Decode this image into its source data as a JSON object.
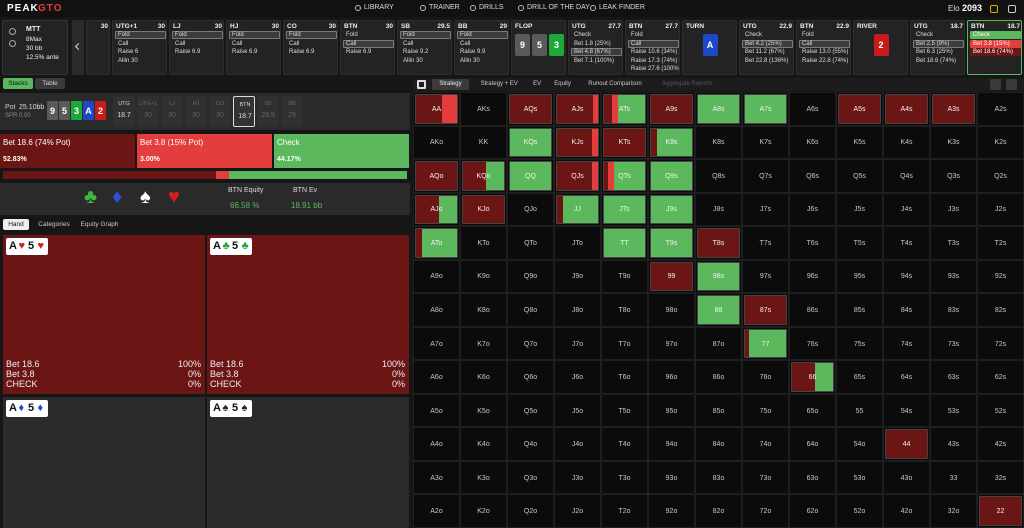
{
  "nav": {
    "logo": [
      "PEAK",
      "GTO"
    ],
    "items": [
      "LIBRARY",
      "TRAINER",
      "DRILLS",
      "DRILL OF THE DAY",
      "LEAK FINDER"
    ],
    "elo_label": "Elo",
    "elo": "2093"
  },
  "game": {
    "format": "MTT",
    "players": "8Max",
    "stack": "30 bb",
    "ante": "12.5% ante"
  },
  "action_columns": [
    {
      "stack": "30",
      "options": []
    },
    {
      "position": "UTG+1",
      "stack": "30",
      "options": [
        "Fold",
        "Call",
        "Raise 6",
        "Allin 30"
      ],
      "selected": 0
    },
    {
      "position": "LJ",
      "stack": "30",
      "options": [
        "Fold",
        "Call",
        "Raise 6.9"
      ],
      "selected": 0
    },
    {
      "position": "HJ",
      "stack": "30",
      "options": [
        "Fold",
        "Call",
        "Raise 6.9"
      ],
      "selected": 0
    },
    {
      "position": "CO",
      "stack": "30",
      "options": [
        "Fold",
        "Call",
        "Raise 6.9"
      ],
      "selected": 0
    },
    {
      "position": "BTN",
      "stack": "30",
      "options": [
        "Fold",
        "Call",
        "Raise 6.9"
      ],
      "selected": 1
    },
    {
      "position": "SB",
      "stack": "29.5",
      "options": [
        "Fold",
        "Call",
        "Raise 9.2",
        "Allin 30"
      ],
      "selected": 0
    },
    {
      "position": "BB",
      "stack": "29",
      "options": [
        "Fold",
        "Call",
        "Raise 9.9",
        "Allin 30"
      ],
      "selected": 0
    },
    {
      "street": "FLOP",
      "cards": [
        {
          "rank": "9",
          "color": "#5a5a5a"
        },
        {
          "rank": "5",
          "color": "#5a5a5a"
        },
        {
          "rank": "3",
          "color": "#1fa83a"
        }
      ]
    },
    {
      "position": "UTG",
      "stack": "27.7",
      "options": [
        "Check",
        "Bet 1.8 (25%)",
        "Bet 4.8 (67%)",
        "Bet 7.1 (100%)"
      ],
      "selected": 2
    },
    {
      "position": "BTN",
      "stack": "27.7",
      "options": [
        "Fold",
        "Call",
        "Raise 10.6 (34%)",
        "Raise 17.3 (74%)",
        "Raise 27.6 (100%)"
      ],
      "selected": 1
    },
    {
      "street": "TURN",
      "cards": [
        {
          "rank": "A",
          "color": "#1d49c9"
        }
      ]
    },
    {
      "position": "UTG",
      "stack": "22.9",
      "options": [
        "Check",
        "Bet 4.2 (25%)",
        "Bet 11.2 (67%)",
        "Bet 22.8 (136%)"
      ],
      "selected": 1
    },
    {
      "position": "BTN",
      "stack": "22.9",
      "options": [
        "Fold",
        "Call",
        "Raise 13.0 (55%)",
        "Raise 22.8 (74%)"
      ],
      "selected": 1
    },
    {
      "street": "RIVER",
      "cards": [
        {
          "rank": "2",
          "color": "#c71c1c"
        }
      ]
    },
    {
      "position": "UTG",
      "stack": "18.7",
      "options": [
        "Check",
        "Bet 2.5 (9%)",
        "Bet 6.3 (25%)",
        "Bet 18.6 (74%)"
      ],
      "selected": 1
    },
    {
      "position": "BTN",
      "stack": "18.7",
      "options": [
        "Check",
        "Bet 3.8 (15%)",
        "Bet 18.6 (74%)"
      ],
      "colors": [
        "#5cb85c",
        "#e33d3d",
        "#6b1515"
      ],
      "active": true
    }
  ],
  "left_tabs": [
    "Stacks",
    "Table"
  ],
  "pot": {
    "label": "Pot",
    "value": "25.10bb",
    "spr": "SPR 0.00"
  },
  "board": [
    {
      "rank": "9",
      "color": "#5a5a5a"
    },
    {
      "rank": "5",
      "color": "#5a5a5a"
    },
    {
      "rank": "3",
      "color": "#1fa83a"
    },
    {
      "rank": "A",
      "color": "#1d49c9"
    },
    {
      "rank": "2",
      "color": "#c71c1c"
    }
  ],
  "positions": [
    {
      "pos": "UTG",
      "stack": "18.7"
    },
    {
      "pos": "UTG+1",
      "stack": "30"
    },
    {
      "pos": "LJ",
      "stack": "30"
    },
    {
      "pos": "HJ",
      "stack": "30"
    },
    {
      "pos": "CO",
      "stack": "30"
    },
    {
      "pos": "BTN",
      "stack": "18.7",
      "active": true
    },
    {
      "pos": "SB",
      "stack": "29.5"
    },
    {
      "pos": "BB",
      "stack": "29"
    }
  ],
  "actions": [
    {
      "name": "Bet 18.6 (74% Pot)",
      "value": 52.83,
      "label": "52.83%",
      "color": "#6b1515"
    },
    {
      "name": "Bet 3.8 (15% Pot)",
      "value": 3.0,
      "label": "3.00%",
      "color": "#e33d3d"
    },
    {
      "name": "Check",
      "value": 44.17,
      "label": "44.17%",
      "color": "#5cb85c"
    }
  ],
  "suits": [
    {
      "symbol": "♣",
      "color": "#3fb83f"
    },
    {
      "symbol": "♦",
      "color": "#2c4fd6"
    },
    {
      "symbol": "♠",
      "color": "#ffffff"
    },
    {
      "symbol": "♥",
      "color": "#d11f1f"
    }
  ],
  "equity": {
    "label": "BTN Equity",
    "value": "66.58 %",
    "ev_label": "BTN Ev",
    "ev": "18.91 bb"
  },
  "hand_tabs": [
    "Hand",
    "Categories",
    "Equity Graph"
  ],
  "hands": [
    {
      "text": [
        "A",
        "♥",
        "5",
        "♥"
      ],
      "suit_color": "#d11f1f",
      "background": "#6b1515",
      "rows": [
        [
          "Bet 18.6",
          "100%"
        ],
        [
          "Bet 3.8",
          "0%"
        ],
        [
          "CHECK",
          "0%"
        ]
      ]
    },
    {
      "text": [
        "A",
        "♣",
        "5",
        "♣"
      ],
      "suit_color": "#1fa83a",
      "background": "#6b1515",
      "rows": [
        [
          "Bet 18.6",
          "100%"
        ],
        [
          "Bet 3.8",
          "0%"
        ],
        [
          "CHECK",
          "0%"
        ]
      ]
    },
    {
      "text": [
        "A",
        "♦",
        "5",
        "♦"
      ],
      "suit_color": "#1d49c9",
      "background": "#2b2b2b"
    },
    {
      "text": [
        "A",
        "♠",
        "5",
        "♠"
      ],
      "suit_color": "#222222",
      "background": "#2b2b2b"
    }
  ],
  "strategy_tabs": [
    "Strategy",
    "Strategy + EV",
    "EV",
    "Equity",
    "Runout Comparison",
    "Aggregate Reports"
  ],
  "grid": [
    [
      "AA",
      "AKs",
      "AQs",
      "AJs",
      "ATs",
      "A9s",
      "A8s",
      "A7s",
      "A6s",
      "A5s",
      "A4s",
      "A3s",
      "A2s"
    ],
    [
      "AKo",
      "KK",
      "KQs",
      "KJs",
      "KTs",
      "K9s",
      "K8s",
      "K7s",
      "K6s",
      "K5s",
      "K4s",
      "K3s",
      "K2s"
    ],
    [
      "AQo",
      "KQo",
      "QQ",
      "QJs",
      "QTs",
      "Q9s",
      "Q8s",
      "Q7s",
      "Q6s",
      "Q5s",
      "Q4s",
      "Q3s",
      "Q2s"
    ],
    [
      "AJo",
      "KJo",
      "QJo",
      "JJ",
      "JTs",
      "J9s",
      "J8s",
      "J7s",
      "J6s",
      "J5s",
      "J4s",
      "J3s",
      "J2s"
    ],
    [
      "ATo",
      "KTo",
      "QTo",
      "JTo",
      "TT",
      "T9s",
      "T8s",
      "T7s",
      "T6s",
      "T5s",
      "T4s",
      "T3s",
      "T2s"
    ],
    [
      "A9o",
      "K9o",
      "Q9o",
      "J9o",
      "T9o",
      "99",
      "98s",
      "97s",
      "96s",
      "95s",
      "94s",
      "93s",
      "92s"
    ],
    [
      "A8o",
      "K8o",
      "Q8o",
      "J8o",
      "T8o",
      "98o",
      "88",
      "87s",
      "86s",
      "85s",
      "84s",
      "83s",
      "82s"
    ],
    [
      "A7o",
      "K7o",
      "Q7o",
      "J7o",
      "T7o",
      "97o",
      "87o",
      "77",
      "76s",
      "75s",
      "74s",
      "73s",
      "72s"
    ],
    [
      "A6o",
      "K6o",
      "Q6o",
      "J6o",
      "T6o",
      "96o",
      "86o",
      "76o",
      "66",
      "65s",
      "64s",
      "63s",
      "62s"
    ],
    [
      "A5o",
      "K5o",
      "Q5o",
      "J5o",
      "T5o",
      "95o",
      "85o",
      "75o",
      "65o",
      "55",
      "54s",
      "53s",
      "52s"
    ],
    [
      "A4o",
      "K4o",
      "Q4o",
      "J4o",
      "T4o",
      "94o",
      "84o",
      "74o",
      "64o",
      "54o",
      "44",
      "43s",
      "42s"
    ],
    [
      "A3o",
      "K3o",
      "Q3o",
      "J3o",
      "T3o",
      "93o",
      "83o",
      "73o",
      "63o",
      "53o",
      "43o",
      "33",
      "32s"
    ],
    [
      "A2o",
      "K2o",
      "Q2o",
      "J2o",
      "T2o",
      "92o",
      "82o",
      "72o",
      "62o",
      "52o",
      "42o",
      "32o",
      "22"
    ]
  ],
  "range": {
    "AA": [
      64,
      36,
      0
    ],
    "AQs": [
      100,
      0,
      0
    ],
    "AJs": [
      88,
      12,
      0
    ],
    "ATs": [
      20,
      15,
      65
    ],
    "A9s": [
      100,
      0,
      0
    ],
    "A8s": [
      0,
      0,
      100
    ],
    "A7s": [
      0,
      0,
      100
    ],
    "A5s": [
      100,
      0,
      0
    ],
    "A4s": [
      100,
      0,
      0
    ],
    "A3s": [
      100,
      0,
      0
    ],
    "KQs": [
      0,
      0,
      100
    ],
    "KJs": [
      85,
      15,
      0
    ],
    "KTs": [
      100,
      0,
      0
    ],
    "K9s": [
      15,
      0,
      85
    ],
    "AQo": [
      100,
      0,
      0
    ],
    "KQo": [
      55,
      0,
      45
    ],
    "QQ": [
      0,
      0,
      100
    ],
    "QJs": [
      85,
      15,
      0
    ],
    "QTs": [
      10,
      15,
      75
    ],
    "Q9s": [
      0,
      0,
      100
    ],
    "AJo": [
      55,
      0,
      45
    ],
    "KJo": [
      100,
      0,
      0
    ],
    "JJ": [
      15,
      0,
      85
    ],
    "JTs": [
      0,
      0,
      100
    ],
    "J9s": [
      0,
      0,
      100
    ],
    "ATo": [
      15,
      0,
      85
    ],
    "TT": [
      0,
      0,
      100
    ],
    "T9s": [
      0,
      0,
      100
    ],
    "T8s": [
      100,
      0,
      0
    ],
    "99": [
      100,
      0,
      0
    ],
    "98s": [
      0,
      0,
      100
    ],
    "88": [
      0,
      0,
      100
    ],
    "87s": [
      100,
      0,
      0
    ],
    "77": [
      10,
      0,
      90
    ],
    "66": [
      55,
      0,
      45
    ],
    "44": [
      100,
      0,
      0
    ],
    "22": [
      100,
      0,
      0
    ]
  }
}
